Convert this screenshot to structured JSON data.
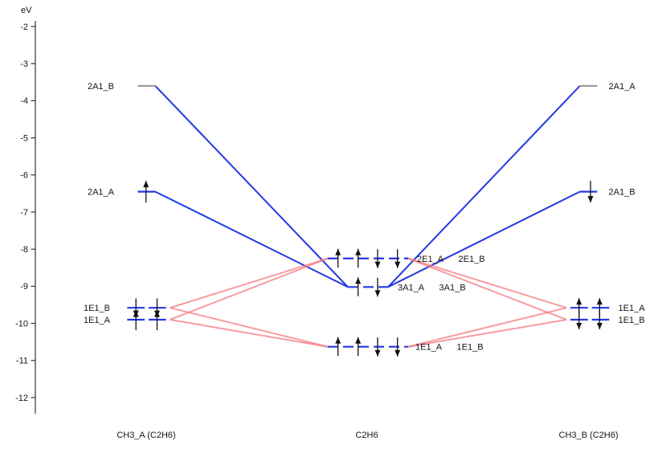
{
  "figure": {
    "background": "#ffffff"
  },
  "chart_data": {
    "type": "line",
    "subtype": "molecular-orbital energy level correlation diagram (spin-unrestricted fragments)",
    "title": "",
    "xlabel": "",
    "ylabel": "eV",
    "ylim": [
      -12.6,
      -1.6
    ],
    "grid": false,
    "legend": false,
    "y_axis": {
      "title": "eV",
      "ticks": [
        -2,
        -3,
        -4,
        -5,
        -6,
        -7,
        -8,
        -9,
        -10,
        -11,
        -12
      ]
    },
    "colors": {
      "occupied_level": "#2338e1",
      "empty_level": "#999999",
      "a1_connector": "#2338e1",
      "e1_connector": "#f4747b",
      "electron_arrow": "#111111",
      "axis": "#333333",
      "text": "#151515"
    },
    "columns": [
      {
        "id": "left",
        "title": "CH3_A (C2H6)",
        "levels": [
          {
            "id": "2A1_B",
            "label": "2A1_B",
            "energy_eV": -3.6,
            "occupied": false,
            "electron_arrows": []
          },
          {
            "id": "2A1_A",
            "label": "2A1_A",
            "energy_eV": -6.45,
            "occupied": true,
            "electron_arrows": [
              "up"
            ]
          },
          {
            "id": "1E1_B",
            "label": "1E1_B",
            "energy_eV": -9.58,
            "occupied": true,
            "degenerate": true,
            "electron_arrows": [
              "down",
              "down"
            ]
          },
          {
            "id": "1E1_A",
            "label": "1E1_A",
            "energy_eV": -9.9,
            "occupied": true,
            "degenerate": true,
            "electron_arrows": [
              "up",
              "up"
            ]
          }
        ]
      },
      {
        "id": "center",
        "title": "C2H6",
        "levels": [
          {
            "id": "2E1",
            "labels": [
              "2E1_A",
              "2E1_B"
            ],
            "energy_eV": -8.25,
            "occupied": true,
            "degenerate": true,
            "electron_arrows": [
              "up",
              "up",
              "down",
              "down"
            ]
          },
          {
            "id": "3A1",
            "labels": [
              "3A1_A",
              "3A1_B"
            ],
            "energy_eV": -9.02,
            "occupied": true,
            "electron_arrows": [
              "up",
              "down"
            ]
          },
          {
            "id": "1E1",
            "labels": [
              "1E1_A",
              "1E1_B"
            ],
            "energy_eV": -10.63,
            "occupied": true,
            "degenerate": true,
            "electron_arrows": [
              "up",
              "up",
              "down",
              "down"
            ]
          }
        ]
      },
      {
        "id": "right",
        "title": "CH3_B (C2H6)",
        "levels": [
          {
            "id": "2A1_A",
            "label": "2A1_A",
            "energy_eV": -3.6,
            "occupied": false,
            "electron_arrows": []
          },
          {
            "id": "2A1_B",
            "label": "2A1_B",
            "energy_eV": -6.45,
            "occupied": true,
            "electron_arrows": [
              "down"
            ]
          },
          {
            "id": "1E1_A",
            "label": "1E1_A",
            "energy_eV": -9.58,
            "occupied": true,
            "degenerate": true,
            "electron_arrows": [
              "up",
              "up"
            ]
          },
          {
            "id": "1E1_B",
            "label": "1E1_B",
            "energy_eV": -9.9,
            "occupied": true,
            "degenerate": true,
            "electron_arrows": [
              "down",
              "down"
            ]
          }
        ]
      }
    ],
    "connectors": [
      {
        "from": "left.2A1_B",
        "to": "center.3A1",
        "type": "a1"
      },
      {
        "from": "left.2A1_A",
        "to": "center.3A1",
        "type": "a1"
      },
      {
        "from": "center.3A1",
        "to": "right.2A1_A",
        "type": "a1"
      },
      {
        "from": "center.3A1",
        "to": "right.2A1_B",
        "type": "a1"
      },
      {
        "from": "left.1E1_B",
        "to": "center.2E1",
        "type": "e1"
      },
      {
        "from": "left.1E1_A",
        "to": "center.2E1",
        "type": "e1"
      },
      {
        "from": "left.1E1_B",
        "to": "center.1E1",
        "type": "e1"
      },
      {
        "from": "left.1E1_A",
        "to": "center.1E1",
        "type": "e1"
      },
      {
        "from": "center.2E1",
        "to": "right.1E1_A",
        "type": "e1"
      },
      {
        "from": "center.2E1",
        "to": "right.1E1_B",
        "type": "e1"
      },
      {
        "from": "center.1E1",
        "to": "right.1E1_A",
        "type": "e1"
      },
      {
        "from": "center.1E1",
        "to": "right.1E1_B",
        "type": "e1"
      }
    ]
  }
}
